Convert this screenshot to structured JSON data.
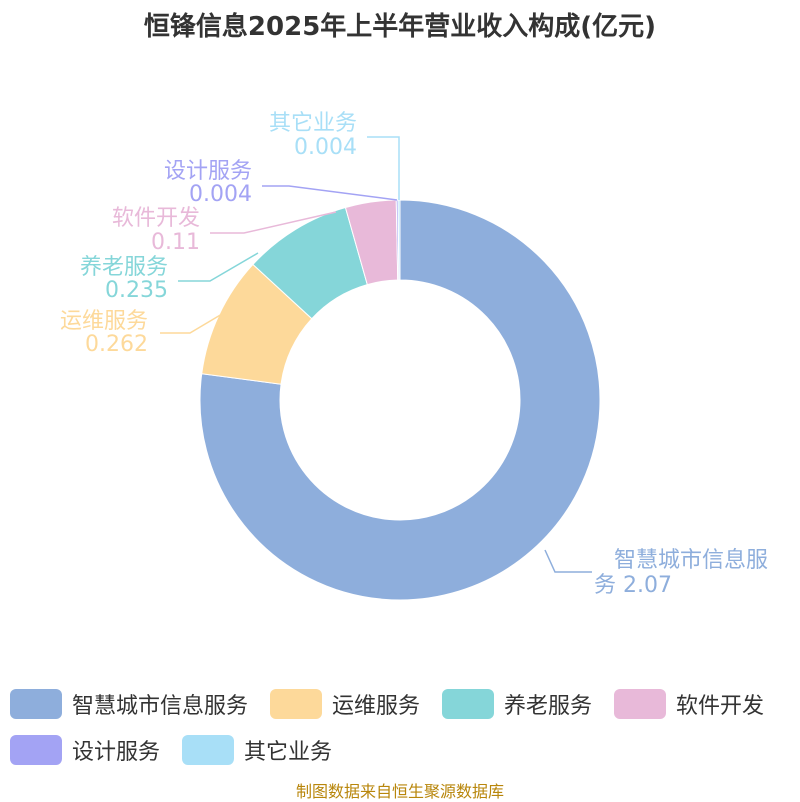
{
  "chart_data": {
    "type": "pie",
    "title": "恒锋信息2025年上半年营业收入构成(亿元)",
    "donut": true,
    "slices": [
      {
        "label": "智慧城市信息服务",
        "value": 2.07,
        "value_label": "2.07",
        "color": "#8eaedc"
      },
      {
        "label": "运维服务",
        "value": 0.262,
        "value_label": "0.262",
        "color": "#fdd99a"
      },
      {
        "label": "养老服务",
        "value": 0.235,
        "value_label": "0.235",
        "color": "#85d6d9"
      },
      {
        "label": "软件开发",
        "value": 0.11,
        "value_label": "0.11",
        "color": "#e8b9d9"
      },
      {
        "label": "设计服务",
        "value": 0.004,
        "value_label": "0.004",
        "color": "#a3a3f4"
      },
      {
        "label": "其它业务",
        "value": 0.004,
        "value_label": "0.004",
        "color": "#a8dff7"
      }
    ],
    "legend_position": "bottom"
  },
  "source": "制图数据来自恒生聚源数据库"
}
